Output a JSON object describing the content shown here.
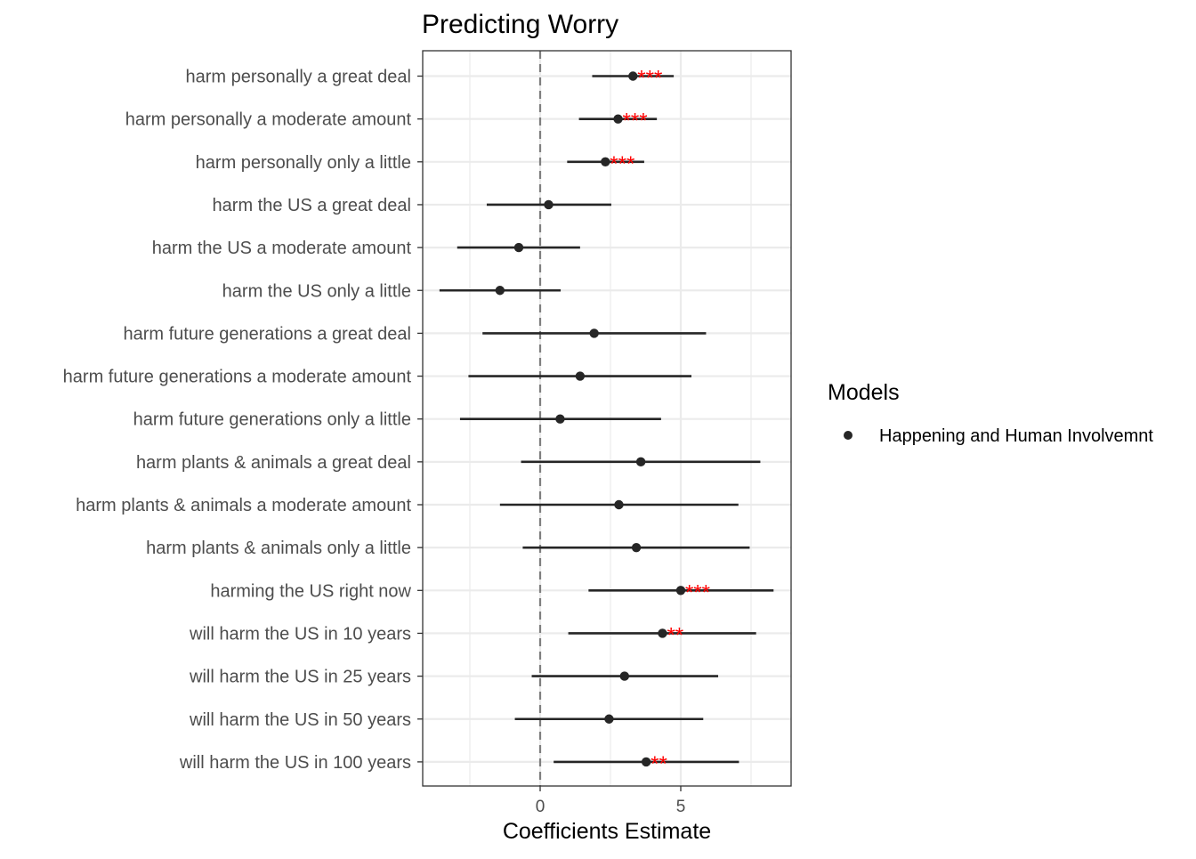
{
  "chart_data": {
    "type": "scatter",
    "title": "Predicting Worry",
    "xlabel": "Coefficients Estimate",
    "ylabel": "",
    "xlim": [
      -4.2,
      8.8
    ],
    "x_ticks": [
      0,
      5
    ],
    "x_tick_labels": [
      "0",
      "5"
    ],
    "x_minor_gridlines": [
      -2.5,
      2.5,
      7.5
    ],
    "reference_line": 0,
    "grid": true,
    "legend": {
      "title": "Models",
      "position": "right",
      "entries": [
        "Happening and Human Involvemnt"
      ]
    },
    "series": [
      {
        "name": "Happening and Human Involvemnt",
        "points": [
          {
            "label": "harm personally a great deal",
            "estimate": 3.3,
            "low": 1.85,
            "high": 4.75,
            "sig": "***"
          },
          {
            "label": "harm personally a moderate amount",
            "estimate": 2.77,
            "low": 1.38,
            "high": 4.15,
            "sig": "***"
          },
          {
            "label": "harm personally only a little",
            "estimate": 2.32,
            "low": 0.96,
            "high": 3.7,
            "sig": "***"
          },
          {
            "label": "harm the US a great deal",
            "estimate": 0.3,
            "low": -1.9,
            "high": 2.53,
            "sig": ""
          },
          {
            "label": "harm the US a moderate amount",
            "estimate": -0.76,
            "low": -2.95,
            "high": 1.42,
            "sig": ""
          },
          {
            "label": "harm the US only a little",
            "estimate": -1.43,
            "low": -3.58,
            "high": 0.73,
            "sig": ""
          },
          {
            "label": "harm future generations a great deal",
            "estimate": 1.92,
            "low": -2.05,
            "high": 5.9,
            "sig": ""
          },
          {
            "label": "harm future generations a moderate amount",
            "estimate": 1.42,
            "low": -2.55,
            "high": 5.38,
            "sig": ""
          },
          {
            "label": "harm future generations only a little",
            "estimate": 0.71,
            "low": -2.85,
            "high": 4.3,
            "sig": ""
          },
          {
            "label": "harm plants & animals a great deal",
            "estimate": 3.58,
            "low": -0.68,
            "high": 7.83,
            "sig": ""
          },
          {
            "label": "harm plants & animals a moderate amount",
            "estimate": 2.8,
            "low": -1.43,
            "high": 7.05,
            "sig": ""
          },
          {
            "label": "harm plants & animals only a little",
            "estimate": 3.42,
            "low": -0.62,
            "high": 7.45,
            "sig": ""
          },
          {
            "label": "harming the US right now",
            "estimate": 5.0,
            "low": 1.72,
            "high": 8.3,
            "sig": "***"
          },
          {
            "label": "will harm the US in 10 years",
            "estimate": 4.35,
            "low": 1.0,
            "high": 7.68,
            "sig": "**"
          },
          {
            "label": "will harm the US in 25 years",
            "estimate": 3.0,
            "low": -0.3,
            "high": 6.33,
            "sig": ""
          },
          {
            "label": "will harm the US in 50 years",
            "estimate": 2.45,
            "low": -0.9,
            "high": 5.8,
            "sig": ""
          },
          {
            "label": "will harm the US in 100 years",
            "estimate": 3.77,
            "low": 0.48,
            "high": 7.07,
            "sig": "**"
          }
        ]
      }
    ],
    "colors": {
      "point": "#262626",
      "significance": "#ff0000",
      "zero_line": "#7f7f7f",
      "grid": "#ebebeb",
      "panel_border": "#333333"
    }
  }
}
